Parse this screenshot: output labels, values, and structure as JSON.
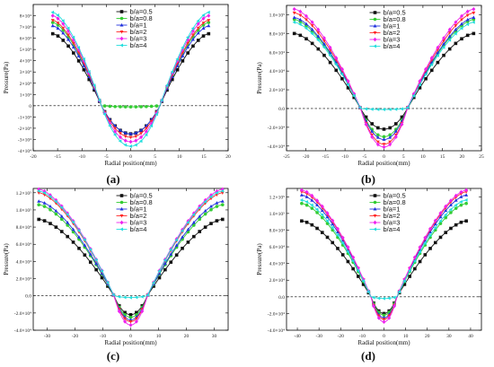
{
  "figure": {
    "series_names": [
      "b/a=0.5",
      "b/a=0.8",
      "b/a=1",
      "b/a=2",
      "b/a=3",
      "b/a=4"
    ],
    "series_colors": [
      "#111111",
      "#33cc33",
      "#2233dd",
      "#ff2a2a",
      "#ee22ee",
      "#22dddd"
    ],
    "marker_shapes": [
      "square",
      "circle",
      "triangle",
      "triangle-down",
      "diamond",
      "triangle-left"
    ]
  },
  "chart_data": [
    {
      "type": "line",
      "panel_label": "(a)",
      "xlabel": "Radial position(mm)",
      "ylabel": "Pressure(Pa)",
      "xlim": [
        -20,
        20
      ],
      "ylim": [
        -40000,
        90000
      ],
      "xticks": [
        -20,
        -15,
        -10,
        -5,
        0,
        5,
        10,
        15,
        20
      ],
      "xtick_labels": [
        "-20",
        "-15",
        "-10",
        "-5",
        "0",
        "5",
        "10",
        "15",
        "20"
      ],
      "yticks": [
        -40000,
        -30000,
        -20000,
        -10000,
        0,
        10000,
        20000,
        30000,
        40000,
        50000,
        60000,
        70000,
        80000
      ],
      "ytick_labels": [
        "-4×10⁴",
        "-3×10⁴",
        "-2×10⁴",
        "-1×10⁴",
        "0",
        "1×10⁴",
        "2×10⁴",
        "3×10⁴",
        "4×10⁴",
        "5×10⁴",
        "6×10⁴",
        "7×10⁴",
        "8×10⁴"
      ],
      "xmax_data": 16,
      "cutoff_abs_x": 6,
      "npoints": 31,
      "legend_position": "top-center",
      "series": [
        {
          "name": "b/a=0.5",
          "edge": 64000,
          "center": -25000
        },
        {
          "name": "b/a=0.8",
          "edge": 74000,
          "center": -1000
        },
        {
          "name": "b/a=1",
          "edge": 71000,
          "center": -25000
        },
        {
          "name": "b/a=2",
          "edge": 76000,
          "center": -28000
        },
        {
          "name": "b/a=3",
          "edge": 80000,
          "center": -32000
        },
        {
          "name": "b/a=4",
          "edge": 83000,
          "center": -36000
        }
      ]
    },
    {
      "type": "line",
      "panel_label": "(b)",
      "xlabel": "Radial position(mm)",
      "ylabel": "Pressure(Pa)",
      "xlim": [
        -25,
        25
      ],
      "ylim": [
        -45000,
        110000
      ],
      "xticks": [
        -25,
        -20,
        -15,
        -10,
        -5,
        0,
        5,
        10,
        15,
        20,
        25
      ],
      "xtick_labels": [
        "-25",
        "-20",
        "-15",
        "-10",
        "-5",
        "0",
        "5",
        "10",
        "15",
        "20",
        "25"
      ],
      "yticks": [
        -40000,
        -20000,
        0,
        20000,
        40000,
        60000,
        80000,
        100000
      ],
      "ytick_labels": [
        "-4.0×10⁴",
        "-2.0×10⁴",
        "0.0",
        "2.0×10⁴",
        "4.0×10⁴",
        "6.0×10⁴",
        "8.0×10⁴",
        "1.0×10⁵"
      ],
      "xmax_data": 23,
      "cutoff_abs_x": 6,
      "npoints": 31,
      "legend_position": "top-center",
      "series": [
        {
          "name": "b/a=0.5",
          "edge": 80000,
          "center": -22000
        },
        {
          "name": "b/a=0.8",
          "edge": 95000,
          "center": -30000
        },
        {
          "name": "b/a=1",
          "edge": 97000,
          "center": -33000
        },
        {
          "name": "b/a=2",
          "edge": 102000,
          "center": -38000
        },
        {
          "name": "b/a=3",
          "edge": 106000,
          "center": -41000
        },
        {
          "name": "b/a=4",
          "edge": 92000,
          "center": -1000
        }
      ]
    },
    {
      "type": "line",
      "panel_label": "(c)",
      "xlabel": "Radial position(mm)",
      "ylabel": "Pressure(Pa)",
      "xlim": [
        -35,
        35
      ],
      "ylim": [
        -40000,
        125000
      ],
      "xticks": [
        -30,
        -20,
        -10,
        0,
        10,
        20,
        30
      ],
      "xtick_labels": [
        "-30",
        "-20",
        "-10",
        "0",
        "10",
        "20",
        "30"
      ],
      "yticks": [
        -40000,
        -20000,
        0,
        20000,
        40000,
        60000,
        80000,
        100000,
        120000
      ],
      "ytick_labels": [
        "-4.0×10⁴",
        "-2.0×10⁴",
        "0.0",
        "2.0×10⁴",
        "4.0×10⁴",
        "6.0×10⁴",
        "8.0×10⁴",
        "1.0×10⁵",
        "1.2×10⁵"
      ],
      "xmax_data": 33,
      "cutoff_abs_x": 6,
      "npoints": 33,
      "legend_position": "top-center",
      "series": [
        {
          "name": "b/a=0.5",
          "edge": 89000,
          "center": -22000
        },
        {
          "name": "b/a=0.8",
          "edge": 106000,
          "center": -25000
        },
        {
          "name": "b/a=1",
          "edge": 110000,
          "center": -28000
        },
        {
          "name": "b/a=2",
          "edge": 120000,
          "center": -30000
        },
        {
          "name": "b/a=3",
          "edge": 124000,
          "center": -34000
        },
        {
          "name": "b/a=4",
          "edge": 122000,
          "center": -2000
        }
      ]
    },
    {
      "type": "line",
      "panel_label": "(d)",
      "xlabel": "Radial position(mm)",
      "ylabel": "Pressure(Pa)",
      "xlim": [
        -45,
        45
      ],
      "ylim": [
        -40000,
        130000
      ],
      "xticks": [
        -40,
        -30,
        -20,
        -10,
        0,
        10,
        20,
        30,
        40
      ],
      "xtick_labels": [
        "-40",
        "-30",
        "-20",
        "-10",
        "0",
        "10",
        "20",
        "30",
        "40"
      ],
      "yticks": [
        -40000,
        -20000,
        0,
        20000,
        40000,
        60000,
        80000,
        100000,
        120000
      ],
      "ytick_labels": [
        "-4.0×10⁴",
        "-2.0×10⁴",
        "0.0",
        "2.0×10⁴",
        "4.0×10⁴",
        "6.0×10⁴",
        "8.0×10⁴",
        "1.0×10⁵",
        "1.2×10⁵"
      ],
      "xmax_data": 38,
      "cutoff_abs_x": 6,
      "npoints": 33,
      "legend_position": "top-center",
      "series": [
        {
          "name": "b/a=0.5",
          "edge": 91000,
          "center": -20000
        },
        {
          "name": "b/a=0.8",
          "edge": 112000,
          "center": -22000
        },
        {
          "name": "b/a=1",
          "edge": 122000,
          "center": -25000
        },
        {
          "name": "b/a=2",
          "edge": 126000,
          "center": -27000
        },
        {
          "name": "b/a=3",
          "edge": 128000,
          "center": -30000
        },
        {
          "name": "b/a=4",
          "edge": 116000,
          "center": -2000
        }
      ]
    }
  ]
}
